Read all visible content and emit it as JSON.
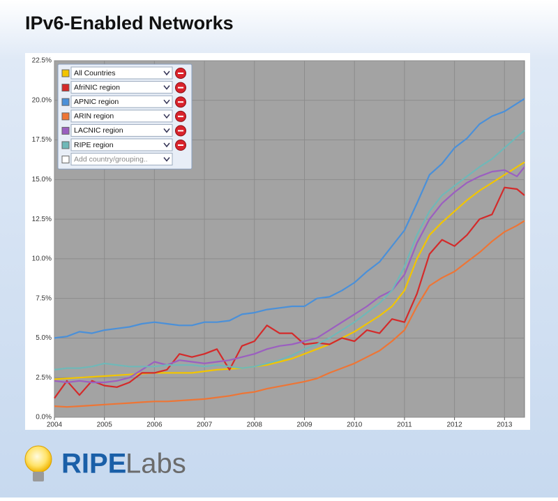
{
  "chart_data": {
    "type": "line",
    "title": "IPv6-Enabled Networks",
    "x": [
      2004,
      2004.25,
      2004.5,
      2004.75,
      2005,
      2005.25,
      2005.5,
      2005.75,
      2006,
      2006.25,
      2006.5,
      2006.75,
      2007,
      2007.25,
      2007.5,
      2007.75,
      2008,
      2008.25,
      2008.5,
      2008.75,
      2009,
      2009.25,
      2009.5,
      2009.75,
      2010,
      2010.25,
      2010.5,
      2010.75,
      2011,
      2011.25,
      2011.5,
      2011.75,
      2012,
      2012.25,
      2012.5,
      2012.75,
      2013,
      2013.25,
      2013.4
    ],
    "series": [
      {
        "name": "All Countries",
        "color": "#f2c500",
        "values": [
          2.4,
          2.45,
          2.5,
          2.55,
          2.6,
          2.65,
          2.7,
          2.75,
          2.8,
          2.8,
          2.8,
          2.8,
          2.9,
          3.0,
          3.05,
          3.1,
          3.2,
          3.3,
          3.5,
          3.7,
          4.0,
          4.3,
          4.6,
          5.0,
          5.4,
          5.9,
          6.4,
          7.0,
          8.0,
          10.0,
          11.5,
          12.3,
          13.0,
          13.7,
          14.3,
          14.8,
          15.3,
          15.8,
          16.1
        ]
      },
      {
        "name": "AfriNIC region",
        "color": "#d42a2a",
        "values": [
          1.2,
          2.3,
          1.4,
          2.3,
          2.0,
          1.9,
          2.2,
          2.8,
          2.8,
          3.0,
          4.0,
          3.8,
          4.0,
          4.3,
          3.0,
          4.5,
          4.8,
          5.8,
          5.3,
          5.3,
          4.6,
          4.7,
          4.6,
          5.0,
          4.8,
          5.5,
          5.3,
          6.2,
          6.0,
          7.8,
          10.3,
          11.2,
          10.8,
          11.5,
          12.5,
          12.8,
          14.5,
          14.4,
          14.0
        ]
      },
      {
        "name": "APNIC region",
        "color": "#4a90d9",
        "values": [
          5.0,
          5.1,
          5.4,
          5.3,
          5.5,
          5.6,
          5.7,
          5.9,
          6.0,
          5.9,
          5.8,
          5.8,
          6.0,
          6.0,
          6.1,
          6.5,
          6.6,
          6.8,
          6.9,
          7.0,
          7.0,
          7.5,
          7.6,
          8.0,
          8.5,
          9.2,
          9.8,
          10.8,
          11.8,
          13.5,
          15.3,
          16.0,
          17.0,
          17.6,
          18.5,
          19.0,
          19.3,
          19.8,
          20.1
        ]
      },
      {
        "name": "ARIN region",
        "color": "#ee7535",
        "values": [
          0.7,
          0.65,
          0.7,
          0.75,
          0.8,
          0.85,
          0.9,
          0.95,
          1.0,
          1.0,
          1.05,
          1.1,
          1.15,
          1.25,
          1.35,
          1.5,
          1.6,
          1.8,
          1.95,
          2.1,
          2.25,
          2.45,
          2.8,
          3.1,
          3.4,
          3.8,
          4.2,
          4.8,
          5.5,
          7.0,
          8.3,
          8.8,
          9.2,
          9.8,
          10.4,
          11.1,
          11.7,
          12.1,
          12.4
        ]
      },
      {
        "name": "LACNIC region",
        "color": "#9b5fc0",
        "values": [
          2.3,
          2.2,
          2.3,
          2.2,
          2.2,
          2.3,
          2.5,
          3.0,
          3.5,
          3.3,
          3.6,
          3.5,
          3.4,
          3.5,
          3.6,
          3.8,
          4.0,
          4.3,
          4.5,
          4.6,
          4.8,
          5.0,
          5.5,
          6.0,
          6.5,
          7.0,
          7.6,
          8.0,
          9.0,
          11.0,
          12.5,
          13.5,
          14.2,
          14.8,
          15.2,
          15.5,
          15.6,
          15.2,
          15.8
        ]
      },
      {
        "name": "RIPE region",
        "color": "#6fb8b8",
        "values": [
          3.0,
          3.1,
          3.1,
          3.2,
          3.4,
          3.3,
          3.2,
          3.2,
          3.2,
          3.3,
          3.3,
          3.3,
          3.2,
          3.3,
          3.2,
          3.1,
          3.2,
          3.4,
          3.6,
          3.9,
          4.3,
          4.6,
          5.0,
          5.5,
          6.0,
          6.6,
          7.2,
          8.0,
          9.5,
          11.5,
          13.0,
          14.0,
          14.6,
          15.2,
          15.8,
          16.3,
          17.0,
          17.7,
          18.1
        ]
      }
    ],
    "legend_placeholder": "Add country/grouping..",
    "xlim": [
      2004,
      2013.4
    ],
    "xticks": [
      2004,
      2005,
      2006,
      2007,
      2008,
      2009,
      2010,
      2011,
      2012,
      2013
    ],
    "ylim": [
      0,
      22.5
    ],
    "yticks": [
      {
        "value": 0,
        "label": "0.0%"
      },
      {
        "value": 2.5,
        "label": "2.5%"
      },
      {
        "value": 5,
        "label": "5.0%"
      },
      {
        "value": 7.5,
        "label": "7.5%"
      },
      {
        "value": 10,
        "label": "10.0%"
      },
      {
        "value": 12.5,
        "label": "12.5%"
      },
      {
        "value": 15,
        "label": "15.0%"
      },
      {
        "value": 17.5,
        "label": "17.5%"
      },
      {
        "value": 20,
        "label": "20.0%"
      },
      {
        "value": 22.5,
        "label": "22.5%"
      }
    ],
    "grid": true,
    "legend_position": "upper-left"
  },
  "logo": {
    "bold": "RIPE",
    "light": "Labs"
  }
}
